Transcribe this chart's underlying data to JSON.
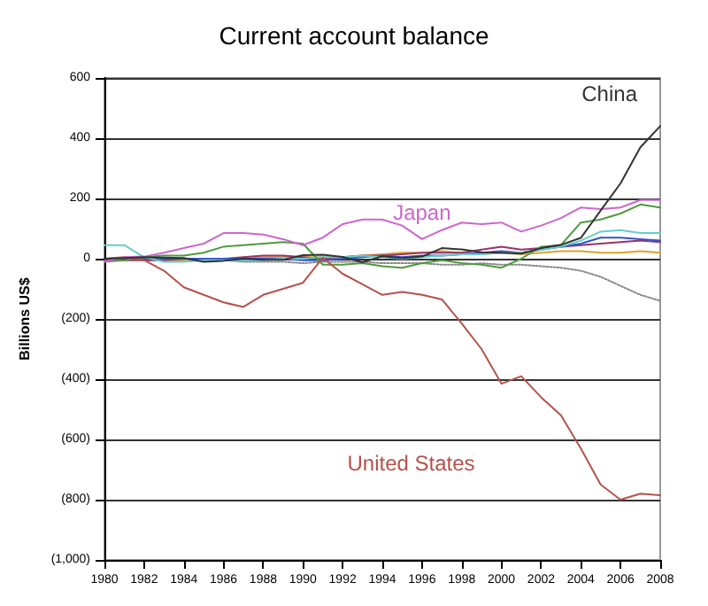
{
  "chart_data": {
    "type": "line",
    "title": "Current account balance",
    "ylabel": "Billions US$",
    "x": [
      1980,
      1981,
      1982,
      1983,
      1984,
      1985,
      1986,
      1987,
      1988,
      1989,
      1990,
      1991,
      1992,
      1993,
      1994,
      1995,
      1996,
      1997,
      1998,
      1999,
      2000,
      2001,
      2002,
      2003,
      2004,
      2005,
      2006,
      2007,
      2008
    ],
    "series": [
      {
        "name": "China",
        "color": "#333333",
        "values": [
          0,
          2,
          5,
          4,
          2,
          -10,
          -7,
          0,
          -4,
          -4,
          12,
          13,
          6,
          -12,
          8,
          2,
          7,
          35,
          31,
          21,
          20,
          17,
          35,
          46,
          69,
          160,
          250,
          370,
          440
        ]
      },
      {
        "name": "Japan",
        "color": "#cc66cc",
        "values": [
          -10,
          5,
          7,
          20,
          35,
          50,
          85,
          85,
          80,
          65,
          45,
          70,
          115,
          130,
          130,
          110,
          65,
          95,
          120,
          115,
          120,
          90,
          110,
          135,
          170,
          165,
          170,
          195,
          195
        ]
      },
      {
        "name": "United States",
        "color": "#b5524a",
        "values": [
          0,
          5,
          -5,
          -40,
          -95,
          -120,
          -145,
          -160,
          -120,
          -100,
          -80,
          3,
          -50,
          -85,
          -120,
          -110,
          -120,
          -135,
          -215,
          -300,
          -415,
          -390,
          -460,
          -520,
          -630,
          -750,
          -800,
          -780,
          -785
        ]
      },
      {
        "color": "#4f9a3f",
        "values": [
          -10,
          -5,
          5,
          10,
          10,
          20,
          40,
          45,
          50,
          55,
          50,
          -20,
          -20,
          -15,
          -25,
          -30,
          -15,
          -5,
          -15,
          -20,
          -30,
          0,
          40,
          45,
          120,
          130,
          150,
          180,
          170
        ]
      },
      {
        "color": "#66cccc",
        "values": [
          45,
          45,
          5,
          -10,
          -10,
          -5,
          -5,
          -5,
          -5,
          0,
          0,
          5,
          5,
          10,
          5,
          0,
          5,
          10,
          15,
          15,
          20,
          20,
          30,
          40,
          60,
          90,
          95,
          85,
          85
        ]
      },
      {
        "color": "#3355cc",
        "values": [
          0,
          0,
          0,
          0,
          0,
          0,
          0,
          0,
          0,
          0,
          -5,
          -5,
          0,
          5,
          10,
          5,
          10,
          10,
          15,
          20,
          25,
          20,
          30,
          40,
          50,
          70,
          70,
          65,
          60
        ]
      },
      {
        "color": "#993366",
        "values": [
          -5,
          -5,
          -5,
          -5,
          0,
          0,
          0,
          5,
          10,
          10,
          5,
          0,
          5,
          10,
          10,
          15,
          20,
          20,
          20,
          30,
          40,
          30,
          35,
          40,
          45,
          50,
          55,
          60,
          55
        ]
      },
      {
        "color": "#e0a030",
        "values": [
          null,
          null,
          null,
          -5,
          -5,
          0,
          0,
          0,
          5,
          5,
          5,
          5,
          5,
          10,
          15,
          20,
          20,
          25,
          20,
          15,
          20,
          15,
          20,
          25,
          25,
          20,
          20,
          25,
          20
        ]
      },
      {
        "color": "#888888",
        "line_style": "dotted",
        "values": [
          0,
          0,
          -5,
          -5,
          -5,
          -5,
          -5,
          -10,
          -10,
          -10,
          -15,
          -10,
          -10,
          -10,
          -15,
          -15,
          -15,
          -20,
          -20,
          -15,
          -20,
          -20,
          -25,
          -30,
          -40,
          -60,
          -90,
          -120,
          -140
        ]
      }
    ],
    "xlim": [
      1980,
      2008
    ],
    "xticks": [
      1980,
      1982,
      1984,
      1986,
      1988,
      1990,
      1992,
      1994,
      1996,
      1998,
      2000,
      2002,
      2004,
      2006,
      2008
    ],
    "ylim": [
      -1000,
      600
    ],
    "yticks": [
      {
        "value": -1000,
        "label": "(1,000)"
      },
      {
        "value": -800,
        "label": "(800)"
      },
      {
        "value": -600,
        "label": "(600)"
      },
      {
        "value": -400,
        "label": "(400)"
      },
      {
        "value": -200,
        "label": "(200)"
      },
      0,
      200,
      400,
      600
    ],
    "grid": "y",
    "legend": false,
    "marker": "none",
    "line_style": "solid"
  }
}
